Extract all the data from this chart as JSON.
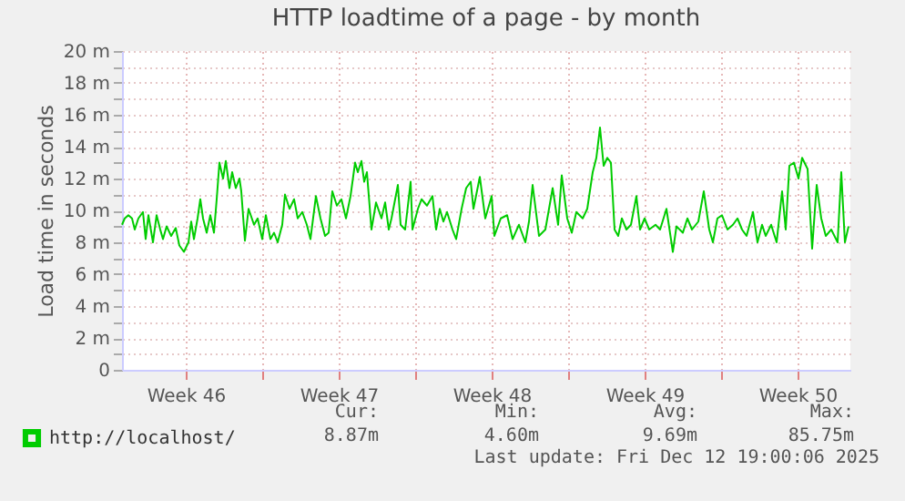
{
  "chart_data": {
    "type": "line",
    "title": "HTTP loadtime of a page - by month",
    "ylabel": "Load time in seconds",
    "xlim": [
      "2025-11-10T14:00",
      "2025-12-13T22:00"
    ],
    "xticks": [
      {
        "value": "2025-11-13T12:00",
        "label": "Week 46"
      },
      {
        "value": "2025-11-17T00:00",
        "label": null
      },
      {
        "value": "2025-11-20T12:00",
        "label": "Week 47"
      },
      {
        "value": "2025-11-24T00:00",
        "label": null
      },
      {
        "value": "2025-11-27T12:00",
        "label": "Week 48"
      },
      {
        "value": "2025-12-01T00:00",
        "label": null
      },
      {
        "value": "2025-12-04T12:00",
        "label": "Week 49"
      },
      {
        "value": "2025-12-08T00:00",
        "label": null
      },
      {
        "value": "2025-12-11T12:00",
        "label": "Week 50"
      }
    ],
    "ylim": [
      0,
      20
    ],
    "yticks": [
      0,
      {
        "value": 1,
        "label": null
      },
      {
        "value": 2,
        "label": "2 m"
      },
      {
        "value": 3,
        "label": null
      },
      {
        "value": 4,
        "label": "4 m"
      },
      {
        "value": 5,
        "label": null
      },
      {
        "value": 6,
        "label": "6 m"
      },
      {
        "value": 7,
        "label": null
      },
      {
        "value": 8,
        "label": "8 m"
      },
      {
        "value": 9,
        "label": null
      },
      {
        "value": 10,
        "label": "10 m"
      },
      {
        "value": 11,
        "label": null
      },
      {
        "value": 12,
        "label": "12 m"
      },
      {
        "value": 13,
        "label": null
      },
      {
        "value": 14,
        "label": "14 m"
      },
      {
        "value": 15,
        "label": null
      },
      {
        "value": 16,
        "label": "16 m"
      },
      {
        "value": 17,
        "label": null
      },
      {
        "value": 18,
        "label": "18 m"
      },
      {
        "value": 19,
        "label": null
      },
      {
        "value": 20,
        "label": "20 m"
      }
    ],
    "grid": true,
    "legend": "bottom",
    "marker": "none",
    "line_style": "solid",
    "x": [
      "2025-11-10T14:00",
      "2025-11-10T17:00",
      "2025-11-10T21:00",
      "2025-11-11T01:00",
      "2025-11-11T04:00",
      "2025-11-11T08:00",
      "2025-11-11T13:00",
      "2025-11-11T16:00",
      "2025-11-11T19:00",
      "2025-11-12T00:00",
      "2025-11-12T04:00",
      "2025-11-12T08:00",
      "2025-11-12T11:00",
      "2025-11-12T15:00",
      "2025-11-12T20:00",
      "2025-11-13T01:00",
      "2025-11-13T05:00",
      "2025-11-13T10:00",
      "2025-11-13T15:00",
      "2025-11-13T18:00",
      "2025-11-13T21:00",
      "2025-11-14T01:00",
      "2025-11-14T04:00",
      "2025-11-14T07:00",
      "2025-11-14T11:00",
      "2025-11-14T15:00",
      "2025-11-14T19:00",
      "2025-11-14T22:00",
      "2025-11-15T01:00",
      "2025-11-15T05:00",
      "2025-11-15T08:00",
      "2025-11-15T12:00",
      "2025-11-15T15:00",
      "2025-11-15T19:00",
      "2025-11-15T23:00",
      "2025-11-16T01:00",
      "2025-11-16T05:00",
      "2025-11-16T09:00",
      "2025-11-16T15:00",
      "2025-11-16T19:00",
      "2025-11-17T00:00",
      "2025-11-17T04:00",
      "2025-11-17T09:00",
      "2025-11-17T13:00",
      "2025-11-17T17:00",
      "2025-11-17T22:00",
      "2025-11-18T01:00",
      "2025-11-18T06:00",
      "2025-11-18T11:00",
      "2025-11-18T15:00",
      "2025-11-18T20:00",
      "2025-11-19T01:00",
      "2025-11-19T05:00",
      "2025-11-19T11:00",
      "2025-11-19T16:00",
      "2025-11-19T21:00",
      "2025-11-20T01:00",
      "2025-11-20T05:00",
      "2025-11-20T10:00",
      "2025-11-20T15:00",
      "2025-11-20T20:00",
      "2025-11-21T01:00",
      "2025-11-21T06:00",
      "2025-11-21T09:00",
      "2025-11-21T13:00",
      "2025-11-21T16:00",
      "2025-11-21T19:00",
      "2025-11-22T00:00",
      "2025-11-22T05:00",
      "2025-11-22T11:00",
      "2025-11-22T15:00",
      "2025-11-22T19:00",
      "2025-11-22T22:00",
      "2025-11-23T05:00",
      "2025-11-23T08:00",
      "2025-11-23T13:00",
      "2025-11-23T19:00",
      "2025-11-23T21:00",
      "2025-11-24T03:00",
      "2025-11-24T07:00",
      "2025-11-24T13:00",
      "2025-11-24T19:00",
      "2025-11-24T23:00",
      "2025-11-25T03:00",
      "2025-11-25T07:00",
      "2025-11-25T11:00",
      "2025-11-25T17:00",
      "2025-11-25T21:00",
      "2025-11-26T03:00",
      "2025-11-26T08:00",
      "2025-11-26T13:00",
      "2025-11-26T16:00",
      "2025-11-26T23:00",
      "2025-11-27T05:00",
      "2025-11-27T12:00",
      "2025-11-27T15:00",
      "2025-11-27T22:00",
      "2025-11-28T05:00",
      "2025-11-28T11:00",
      "2025-11-28T18:00",
      "2025-11-29T01:00",
      "2025-11-29T05:00",
      "2025-11-29T09:00",
      "2025-11-29T16:00",
      "2025-11-29T23:00",
      "2025-11-30T07:00",
      "2025-11-30T13:00",
      "2025-11-30T17:00",
      "2025-11-30T23:00",
      "2025-12-01T04:00",
      "2025-12-01T09:00",
      "2025-12-01T16:00",
      "2025-12-01T21:00",
      "2025-12-02T03:00",
      "2025-12-02T07:00",
      "2025-12-02T11:00",
      "2025-12-02T15:00",
      "2025-12-02T19:00",
      "2025-12-02T23:00",
      "2025-12-03T03:00",
      "2025-12-03T07:00",
      "2025-12-03T11:00",
      "2025-12-03T16:00",
      "2025-12-03T21:00",
      "2025-12-04T03:00",
      "2025-12-04T07:00",
      "2025-12-04T12:00",
      "2025-12-04T17:00",
      "2025-12-05T00:00",
      "2025-12-05T05:00",
      "2025-12-05T12:00",
      "2025-12-05T19:00",
      "2025-12-05T23:00",
      "2025-12-06T06:00",
      "2025-12-06T11:00",
      "2025-12-06T16:00",
      "2025-12-06T23:00",
      "2025-12-07T05:00",
      "2025-12-07T11:00",
      "2025-12-07T15:00",
      "2025-12-07T20:00",
      "2025-12-08T01:00",
      "2025-12-08T07:00",
      "2025-12-08T13:00",
      "2025-12-08T18:00",
      "2025-12-08T23:00",
      "2025-12-09T04:00",
      "2025-12-09T11:00",
      "2025-12-09T16:00",
      "2025-12-09T21:00",
      "2025-12-10T01:00",
      "2025-12-10T07:00",
      "2025-12-10T13:00",
      "2025-12-10T19:00",
      "2025-12-10T23:00",
      "2025-12-11T03:00",
      "2025-12-11T08:00",
      "2025-12-11T13:00",
      "2025-12-11T17:00",
      "2025-12-11T23:00",
      "2025-12-12T04:00",
      "2025-12-12T09:00",
      "2025-12-12T14:00",
      "2025-12-12T19:00",
      "2025-12-13T01:00",
      "2025-12-13T08:00",
      "2025-12-13T12:00",
      "2025-12-13T16:00",
      "2025-12-13T20:00"
    ],
    "series": [
      {
        "name": "http://localhost/",
        "color": "#00cc00",
        "values": [
          9.1,
          9.5,
          9.7,
          9.5,
          8.8,
          9.5,
          9.9,
          8.2,
          9.7,
          8.0,
          9.7,
          8.8,
          8.2,
          9.0,
          8.4,
          8.9,
          7.8,
          7.4,
          8.0,
          9.3,
          8.2,
          9.5,
          10.7,
          9.5,
          8.6,
          9.7,
          8.6,
          10.7,
          13.0,
          12.0,
          13.1,
          11.4,
          12.4,
          11.4,
          12.0,
          11.2,
          8.1,
          10.1,
          9.1,
          9.5,
          8.2,
          9.7,
          8.2,
          8.6,
          8.0,
          9.1,
          11.0,
          10.1,
          10.7,
          9.5,
          9.9,
          9.1,
          8.2,
          10.9,
          9.5,
          8.4,
          8.6,
          11.2,
          10.3,
          10.7,
          9.5,
          10.9,
          13.0,
          12.4,
          13.1,
          11.8,
          12.4,
          8.8,
          10.5,
          9.5,
          10.5,
          8.8,
          9.5,
          11.6,
          9.1,
          8.8,
          11.8,
          8.8,
          10.1,
          10.7,
          10.3,
          10.9,
          8.8,
          10.1,
          9.3,
          9.9,
          8.8,
          8.2,
          10.1,
          11.4,
          11.8,
          10.1,
          12.1,
          9.5,
          10.9,
          8.4,
          9.5,
          9.7,
          8.2,
          9.1,
          8.0,
          9.3,
          11.6,
          8.4,
          8.8,
          11.4,
          9.1,
          12.2,
          9.5,
          8.6,
          9.9,
          9.5,
          10.1,
          12.4,
          13.3,
          15.2,
          12.8,
          13.3,
          13.0,
          8.8,
          8.4,
          9.5,
          8.8,
          9.1,
          10.9,
          8.8,
          9.5,
          8.8,
          9.1,
          8.8,
          10.1,
          7.4,
          9.0,
          8.6,
          9.5,
          8.8,
          9.3,
          11.2,
          8.8,
          8.0,
          9.5,
          9.7,
          8.8,
          9.1,
          9.5,
          8.8,
          8.4,
          9.9,
          8.0,
          9.1,
          8.4,
          9.1,
          8.0,
          11.2,
          8.8,
          12.8,
          13.0,
          12.0,
          13.3,
          12.6,
          7.6,
          11.6,
          9.5,
          8.4,
          8.8,
          8.0,
          12.4,
          8.0,
          9.0
        ]
      }
    ],
    "annotations": [
      "Cur:",
      "Min:",
      "Avg:",
      "Max:",
      "8.87m",
      "4.60m",
      "9.69m",
      "85.75m",
      "Last update: Fri Dec 12 19:00:06 2025"
    ]
  }
}
